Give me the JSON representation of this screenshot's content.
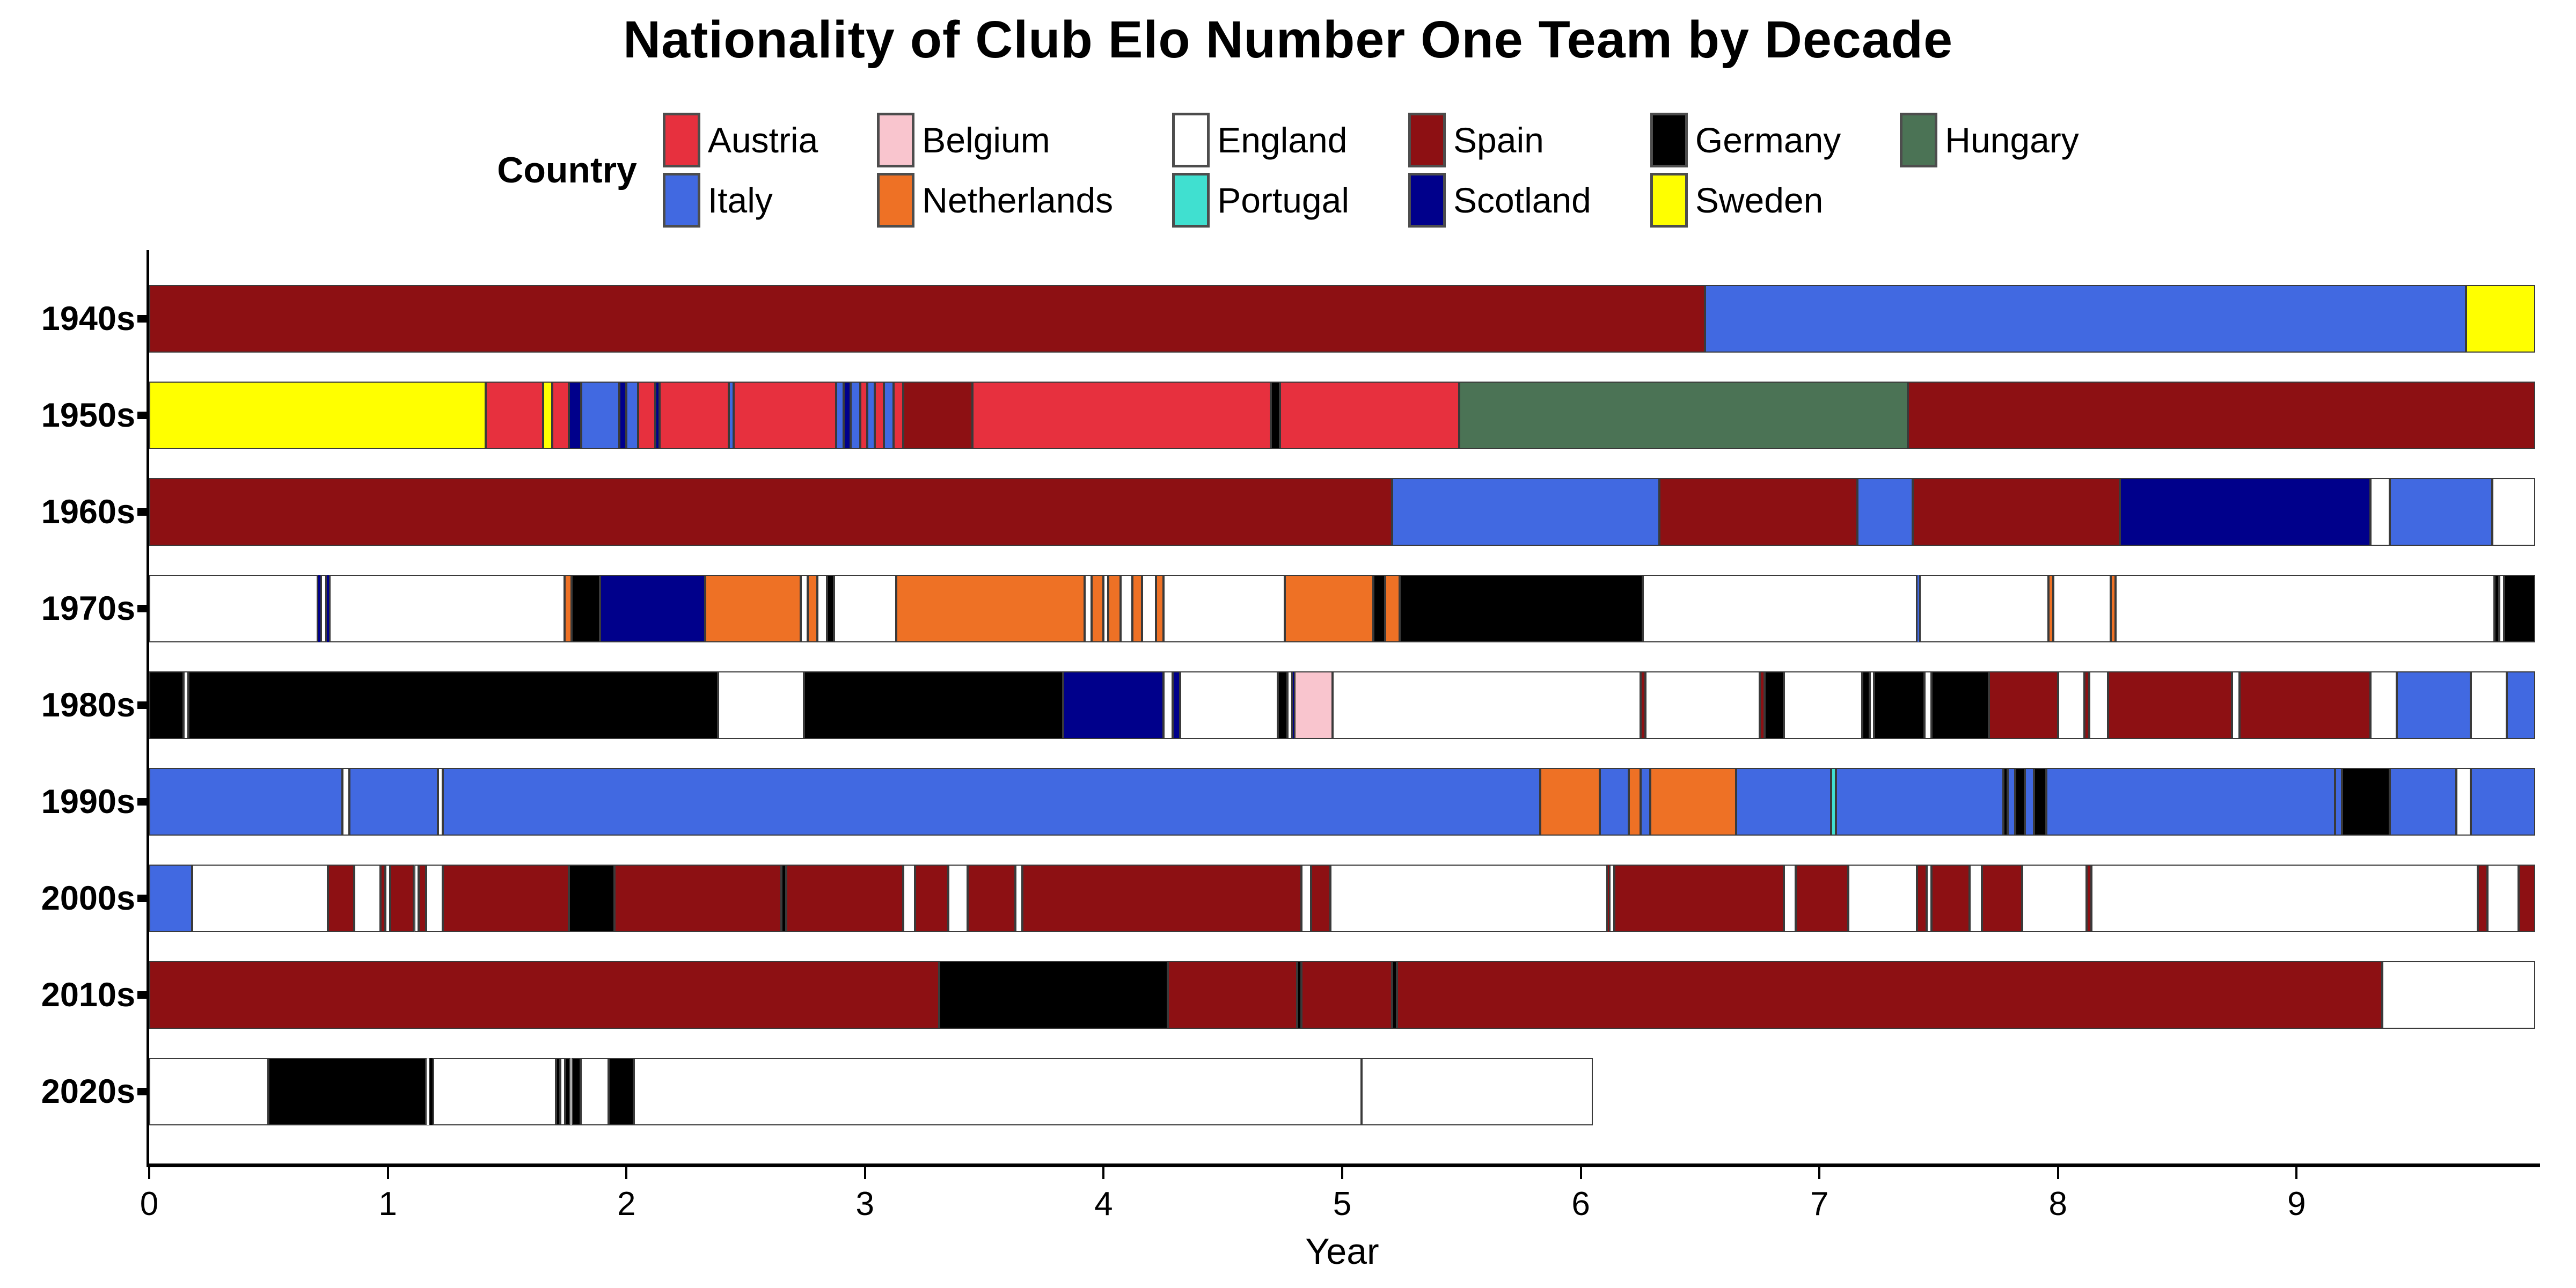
{
  "title": "Nationality of Club Elo Number One Team by Decade",
  "legend": {
    "label": "Country",
    "items": [
      {
        "name": "Austria",
        "color": "#e7303e"
      },
      {
        "name": "Belgium",
        "color": "#f9c5ce"
      },
      {
        "name": "England",
        "color": "#ffffff"
      },
      {
        "name": "Spain",
        "color": "#8d1013"
      },
      {
        "name": "Germany",
        "color": "#000000"
      },
      {
        "name": "Hungary",
        "color": "#4b7355"
      },
      {
        "name": "Italy",
        "color": "#4169e1"
      },
      {
        "name": "Netherlands",
        "color": "#ee7125"
      },
      {
        "name": "Portugal",
        "color": "#40e0d0"
      },
      {
        "name": "Scotland",
        "color": "#00008b"
      },
      {
        "name": "Sweden",
        "color": "#ffff00"
      }
    ]
  },
  "chart_data": {
    "type": "bar",
    "orientation": "horizontal-stacked-timeline",
    "title": "Nationality of Club Elo Number One Team by Decade",
    "xlabel": "Year",
    "ylabel": "",
    "xlim": [
      0,
      10
    ],
    "x_ticks": [
      "0",
      "1",
      "2",
      "3",
      "4",
      "5",
      "6",
      "7",
      "8",
      "9"
    ],
    "grid": false,
    "legend_position": "top",
    "colors": {
      "Austria": "#e7303e",
      "Belgium": "#f9c5ce",
      "England": "#ffffff",
      "Spain": "#8d1013",
      "Germany": "#000000",
      "Hungary": "#4b7355",
      "Italy": "#4169e1",
      "Netherlands": "#ee7125",
      "Portugal": "#40e0d0",
      "Scotland": "#00008b",
      "Sweden": "#ffff00"
    },
    "rows": [
      {
        "decade": "1940s",
        "segments": [
          [
            "Spain",
            0,
            6.52
          ],
          [
            "Italy",
            6.52,
            9.71
          ],
          [
            "Sweden",
            9.71,
            10
          ]
        ]
      },
      {
        "decade": "1950s",
        "segments": [
          [
            "Sweden",
            0,
            1.41
          ],
          [
            "Austria",
            1.41,
            1.65
          ],
          [
            "Sweden",
            1.65,
            1.69
          ],
          [
            "Austria",
            1.69,
            1.76
          ],
          [
            "Scotland",
            1.76,
            1.81
          ],
          [
            "Italy",
            1.81,
            1.97
          ],
          [
            "Scotland",
            1.97,
            2.0
          ],
          [
            "Italy",
            2.0,
            2.05
          ],
          [
            "Austria",
            2.05,
            2.12
          ],
          [
            "Scotland",
            2.12,
            2.14
          ],
          [
            "Austria",
            2.14,
            2.43
          ],
          [
            "Italy",
            2.43,
            2.45
          ],
          [
            "Austria",
            2.45,
            2.88
          ],
          [
            "Italy",
            2.88,
            2.91
          ],
          [
            "Scotland",
            2.91,
            2.94
          ],
          [
            "Italy",
            2.94,
            2.98
          ],
          [
            "Austria",
            2.98,
            3.01
          ],
          [
            "Italy",
            3.01,
            3.04
          ],
          [
            "Austria",
            3.04,
            3.08
          ],
          [
            "Italy",
            3.08,
            3.12
          ],
          [
            "Austria",
            3.12,
            3.16
          ],
          [
            "Spain",
            3.16,
            3.45
          ],
          [
            "Austria",
            3.45,
            4.7
          ],
          [
            "Germany",
            4.7,
            4.74
          ],
          [
            "Austria",
            4.74,
            5.49
          ],
          [
            "Hungary",
            5.49,
            7.37
          ],
          [
            "Spain",
            7.37,
            10
          ]
        ]
      },
      {
        "decade": "1960s",
        "segments": [
          [
            "Spain",
            0,
            5.21
          ],
          [
            "Italy",
            5.21,
            6.33
          ],
          [
            "Spain",
            6.33,
            7.16
          ],
          [
            "Italy",
            7.16,
            7.39
          ],
          [
            "Spain",
            7.39,
            8.26
          ],
          [
            "Scotland",
            8.26,
            9.31
          ],
          [
            "England",
            9.31,
            9.39
          ],
          [
            "Italy",
            9.39,
            9.82
          ],
          [
            "England",
            9.82,
            10
          ]
        ]
      },
      {
        "decade": "1970s",
        "segments": [
          [
            "England",
            0,
            0.706
          ],
          [
            "Scotland",
            0.706,
            0.72
          ],
          [
            "England",
            0.72,
            0.742
          ],
          [
            "Scotland",
            0.742,
            0.755
          ],
          [
            "England",
            0.755,
            1.74
          ],
          [
            "Netherlands",
            1.74,
            1.77
          ],
          [
            "Germany",
            1.77,
            1.89
          ],
          [
            "Scotland",
            1.89,
            2.33
          ],
          [
            "Netherlands",
            2.33,
            2.73
          ],
          [
            "England",
            2.73,
            2.76
          ],
          [
            "Netherlands",
            2.76,
            2.8
          ],
          [
            "England",
            2.8,
            2.84
          ],
          [
            "Germany",
            2.84,
            2.87
          ],
          [
            "England",
            2.87,
            3.13
          ],
          [
            "Netherlands",
            3.13,
            3.92
          ],
          [
            "England",
            3.92,
            3.95
          ],
          [
            "Netherlands",
            3.95,
            4.0
          ],
          [
            "England",
            4.0,
            4.02
          ],
          [
            "Netherlands",
            4.02,
            4.07
          ],
          [
            "England",
            4.07,
            4.12
          ],
          [
            "Netherlands",
            4.12,
            4.16
          ],
          [
            "England",
            4.16,
            4.22
          ],
          [
            "Netherlands",
            4.22,
            4.25
          ],
          [
            "England",
            4.25,
            4.76
          ],
          [
            "Netherlands",
            4.76,
            5.13
          ],
          [
            "Germany",
            5.13,
            5.18
          ],
          [
            "Netherlands",
            5.18,
            5.24
          ],
          [
            "Germany",
            5.24,
            6.26
          ],
          [
            "England",
            6.26,
            7.41
          ],
          [
            "Italy",
            7.41,
            7.42
          ],
          [
            "England",
            7.42,
            7.96
          ],
          [
            "Netherlands",
            7.96,
            7.98
          ],
          [
            "England",
            7.98,
            8.22
          ],
          [
            "Netherlands",
            8.22,
            8.24
          ],
          [
            "England",
            8.24,
            9.83
          ],
          [
            "Germany",
            9.83,
            9.85
          ],
          [
            "England",
            9.85,
            9.87
          ],
          [
            "Germany",
            9.87,
            10
          ]
        ]
      },
      {
        "decade": "1980s",
        "segments": [
          [
            "Germany",
            0,
            0.145
          ],
          [
            "England",
            0.145,
            0.165
          ],
          [
            "Germany",
            0.165,
            2.385
          ],
          [
            "England",
            2.385,
            2.745
          ],
          [
            "Germany",
            2.745,
            3.83
          ],
          [
            "Scotland",
            3.83,
            4.25
          ],
          [
            "England",
            4.25,
            4.29
          ],
          [
            "Scotland",
            4.29,
            4.32
          ],
          [
            "England",
            4.32,
            4.73
          ],
          [
            "Germany",
            4.73,
            4.77
          ],
          [
            "England",
            4.77,
            4.79
          ],
          [
            "Scotland",
            4.79,
            4.8
          ],
          [
            "Belgium",
            4.8,
            4.96
          ],
          [
            "England",
            4.96,
            6.25
          ],
          [
            "Spain",
            6.25,
            6.27
          ],
          [
            "England",
            6.27,
            6.75
          ],
          [
            "Spain",
            6.75,
            6.77
          ],
          [
            "Germany",
            6.77,
            6.85
          ],
          [
            "England",
            6.85,
            7.18
          ],
          [
            "Germany",
            7.18,
            7.21
          ],
          [
            "England",
            7.21,
            7.23
          ],
          [
            "Germany",
            7.23,
            7.44
          ],
          [
            "England",
            7.44,
            7.47
          ],
          [
            "Germany",
            7.47,
            7.71
          ],
          [
            "Spain",
            7.71,
            8.0
          ],
          [
            "England",
            8.0,
            8.11
          ],
          [
            "Spain",
            8.11,
            8.13
          ],
          [
            "England",
            8.13,
            8.21
          ],
          [
            "Spain",
            8.21,
            8.73
          ],
          [
            "England",
            8.73,
            8.76
          ],
          [
            "Spain",
            8.76,
            9.31
          ],
          [
            "England",
            9.31,
            9.42
          ],
          [
            "Italy",
            9.42,
            9.73
          ],
          [
            "England",
            9.73,
            9.88
          ],
          [
            "Italy",
            9.88,
            10
          ]
        ]
      },
      {
        "decade": "1990s",
        "segments": [
          [
            "Italy",
            0,
            0.81
          ],
          [
            "England",
            0.81,
            0.84
          ],
          [
            "Italy",
            0.84,
            1.21
          ],
          [
            "England",
            1.21,
            1.23
          ],
          [
            "Italy",
            1.23,
            5.83
          ],
          [
            "Netherlands",
            5.83,
            6.08
          ],
          [
            "Italy",
            6.08,
            6.2
          ],
          [
            "Netherlands",
            6.2,
            6.25
          ],
          [
            "Italy",
            6.25,
            6.29
          ],
          [
            "Netherlands",
            6.29,
            6.65
          ],
          [
            "Italy",
            6.65,
            7.05
          ],
          [
            "Portugal",
            7.05,
            7.07
          ],
          [
            "Italy",
            7.07,
            7.77
          ],
          [
            "Germany",
            7.77,
            7.79
          ],
          [
            "Italy",
            7.79,
            7.82
          ],
          [
            "Germany",
            7.82,
            7.86
          ],
          [
            "Italy",
            7.86,
            7.9
          ],
          [
            "Germany",
            7.9,
            7.95
          ],
          [
            "Italy",
            7.95,
            9.16
          ],
          [
            "Italy",
            9.16,
            9.19
          ],
          [
            "Germany",
            9.19,
            9.39
          ],
          [
            "Italy",
            9.39,
            9.67
          ],
          [
            "England",
            9.67,
            9.73
          ],
          [
            "Italy",
            9.73,
            10
          ]
        ]
      },
      {
        "decade": "2000s",
        "segments": [
          [
            "Italy",
            0,
            0.18
          ],
          [
            "England",
            0.18,
            0.75
          ],
          [
            "Spain",
            0.75,
            0.86
          ],
          [
            "England",
            0.86,
            0.97
          ],
          [
            "Spain",
            0.97,
            0.99
          ],
          [
            "England",
            0.99,
            1.01
          ],
          [
            "Spain",
            1.01,
            1.11
          ],
          [
            "England",
            1.11,
            1.13
          ],
          [
            "Spain",
            1.13,
            1.16
          ],
          [
            "England",
            1.16,
            1.23
          ],
          [
            "Spain",
            1.23,
            1.76
          ],
          [
            "Germany",
            1.76,
            1.95
          ],
          [
            "Spain",
            1.95,
            2.65
          ],
          [
            "Germany",
            2.65,
            2.67
          ],
          [
            "Spain",
            2.67,
            3.16
          ],
          [
            "England",
            3.16,
            3.21
          ],
          [
            "Spain",
            3.21,
            3.35
          ],
          [
            "England",
            3.35,
            3.43
          ],
          [
            "Spain",
            3.43,
            3.63
          ],
          [
            "England",
            3.63,
            3.66
          ],
          [
            "Spain",
            3.66,
            4.83
          ],
          [
            "England",
            4.83,
            4.87
          ],
          [
            "Spain",
            4.87,
            4.95
          ],
          [
            "England",
            4.95,
            6.11
          ],
          [
            "Spain",
            6.11,
            6.12
          ],
          [
            "England",
            6.12,
            6.14
          ],
          [
            "Spain",
            6.14,
            6.85
          ],
          [
            "England",
            6.85,
            6.9
          ],
          [
            "Spain",
            6.9,
            7.12
          ],
          [
            "England",
            7.12,
            7.41
          ],
          [
            "Spain",
            7.41,
            7.45
          ],
          [
            "England",
            7.45,
            7.47
          ],
          [
            "Spain",
            7.47,
            7.63
          ],
          [
            "England",
            7.63,
            7.68
          ],
          [
            "Spain",
            7.68,
            7.85
          ],
          [
            "England",
            7.85,
            8.12
          ],
          [
            "Spain",
            8.12,
            8.14
          ],
          [
            "England",
            8.14,
            9.76
          ],
          [
            "Spain",
            9.76,
            9.8
          ],
          [
            "England",
            9.8,
            9.93
          ],
          [
            "Spain",
            9.93,
            10
          ]
        ]
      },
      {
        "decade": "2010s",
        "segments": [
          [
            "Spain",
            0,
            3.31
          ],
          [
            "Germany",
            3.31,
            4.27
          ],
          [
            "Spain",
            4.27,
            4.81
          ],
          [
            "Germany",
            4.81,
            4.83
          ],
          [
            "Spain",
            4.83,
            5.21
          ],
          [
            "Germany",
            5.21,
            5.23
          ],
          [
            "Spain",
            5.23,
            9.36
          ],
          [
            "England",
            9.36,
            10
          ]
        ]
      },
      {
        "decade": "2020s",
        "segments": [
          [
            "England",
            0,
            0.5
          ],
          [
            "Germany",
            0.5,
            1.16
          ],
          [
            "England",
            1.16,
            1.175
          ],
          [
            "Germany",
            1.175,
            1.19
          ],
          [
            "England",
            1.19,
            1.705
          ],
          [
            "Germany",
            1.705,
            1.724
          ],
          [
            "England",
            1.724,
            1.743
          ],
          [
            "Germany",
            1.743,
            1.763
          ],
          [
            "England",
            1.763,
            1.773
          ],
          [
            "Germany",
            1.773,
            1.808
          ],
          [
            "England",
            1.808,
            1.925
          ],
          [
            "Germany",
            1.925,
            2.03
          ],
          [
            "England",
            2.03,
            5.08
          ],
          [
            "England",
            5.08,
            6.05
          ]
        ]
      }
    ]
  }
}
